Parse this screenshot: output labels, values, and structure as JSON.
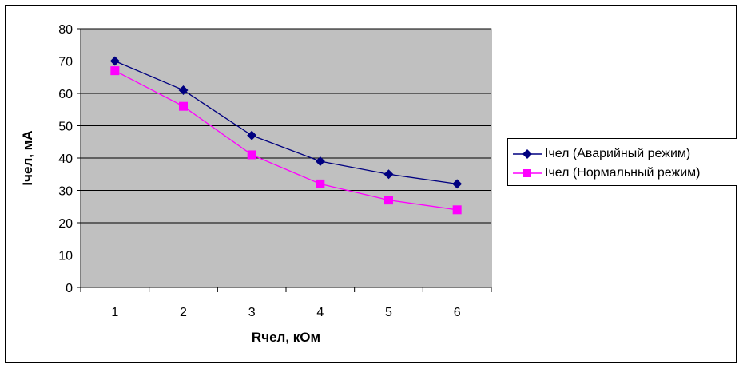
{
  "chart_data": {
    "type": "line",
    "title": "",
    "xlabel": "Rчел, кОм",
    "ylabel": "Iчел, мА",
    "categories": [
      "1",
      "2",
      "3",
      "4",
      "5",
      "6"
    ],
    "ylim": [
      0,
      80
    ],
    "yticks": [
      0,
      10,
      20,
      30,
      40,
      50,
      60,
      70,
      80
    ],
    "grid": true,
    "legend_position": "right",
    "plot_background": "#c0c0c0",
    "series": [
      {
        "name": "Iчел (Аварийный режим)",
        "values": [
          70,
          61,
          47,
          39,
          35,
          32
        ],
        "color": "#000080",
        "marker": "diamond"
      },
      {
        "name": "Iчел (Нормальный режим)",
        "values": [
          67,
          56,
          41,
          32,
          27,
          24
        ],
        "color": "#ff00ff",
        "marker": "square"
      }
    ]
  }
}
